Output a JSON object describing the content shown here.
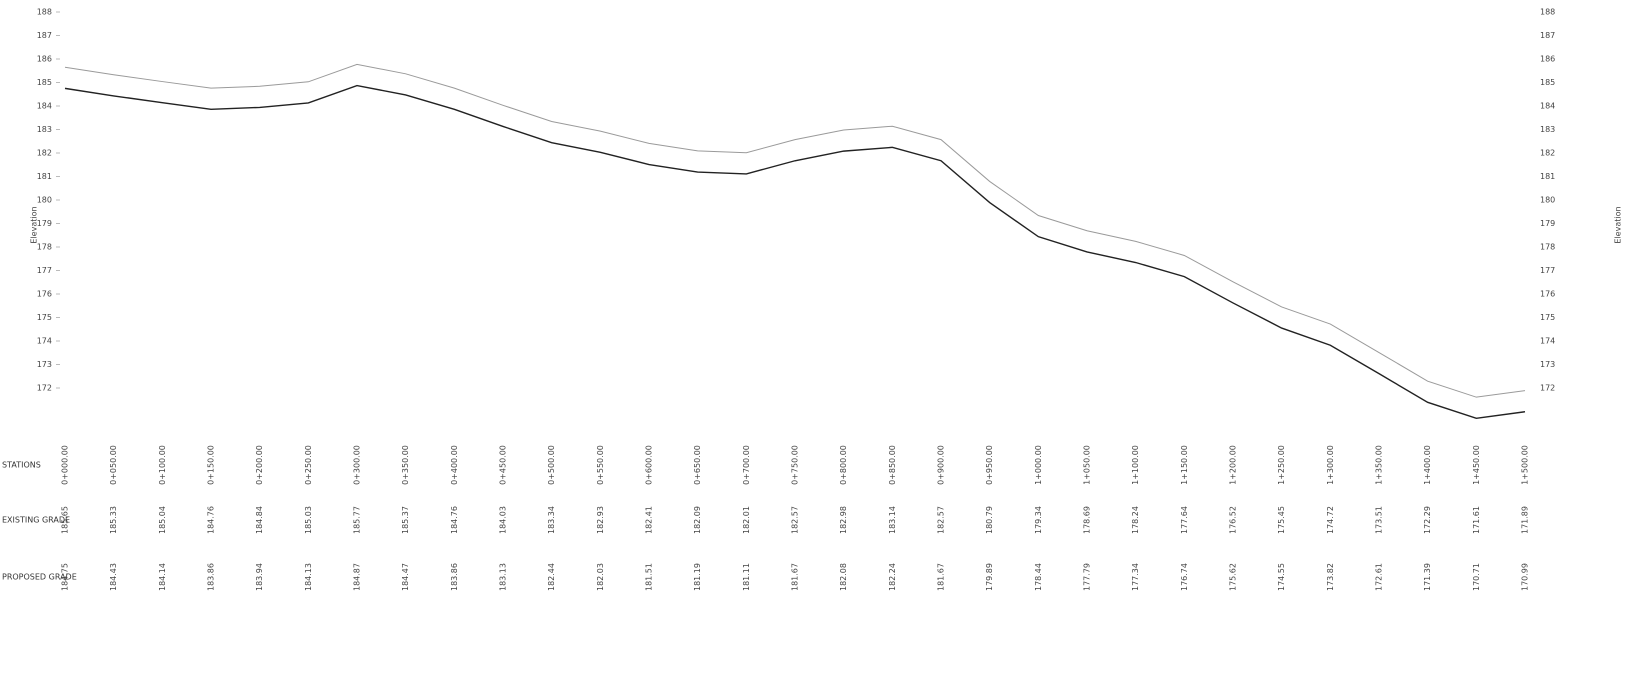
{
  "chart_data": {
    "type": "line",
    "y_label": "Elevation",
    "row_labels": [
      "STATIONS",
      "EXISTING GRADE",
      "PROPOSED GRADE"
    ],
    "categories": [
      "0+000.00",
      "0+050.00",
      "0+100.00",
      "0+150.00",
      "0+200.00",
      "0+250.00",
      "0+300.00",
      "0+350.00",
      "0+400.00",
      "0+450.00",
      "0+500.00",
      "0+550.00",
      "0+600.00",
      "0+650.00",
      "0+700.00",
      "0+750.00",
      "0+800.00",
      "0+850.00",
      "0+900.00",
      "0+950.00",
      "1+000.00",
      "1+050.00",
      "1+100.00",
      "1+150.00",
      "1+200.00",
      "1+250.00",
      "1+300.00",
      "1+350.00",
      "1+400.00",
      "1+450.00",
      "1+500.00"
    ],
    "series": [
      {
        "name": "EXISTING GRADE",
        "color": "#9a9a9a",
        "values": [
          185.65,
          185.33,
          185.04,
          184.76,
          184.84,
          185.03,
          185.77,
          185.37,
          184.76,
          184.03,
          183.34,
          182.93,
          182.41,
          182.09,
          182.01,
          182.57,
          182.98,
          183.14,
          182.57,
          180.79,
          179.34,
          178.69,
          178.24,
          177.64,
          176.52,
          175.45,
          174.72,
          173.51,
          172.29,
          171.61,
          171.89
        ]
      },
      {
        "name": "PROPOSED GRADE",
        "color": "#222222",
        "values": [
          184.75,
          184.43,
          184.14,
          183.86,
          183.94,
          184.13,
          184.87,
          184.47,
          183.86,
          183.13,
          182.44,
          182.03,
          181.51,
          181.19,
          181.11,
          181.67,
          182.08,
          182.24,
          181.67,
          179.89,
          178.44,
          177.79,
          177.34,
          176.74,
          175.62,
          174.55,
          173.82,
          172.61,
          171.39,
          170.71,
          170.99
        ]
      }
    ],
    "ylim": [
      170,
      188
    ],
    "yticks": [
      172,
      173,
      174,
      175,
      176,
      177,
      178,
      179,
      180,
      181,
      182,
      183,
      184,
      185,
      186,
      187,
      188
    ]
  }
}
